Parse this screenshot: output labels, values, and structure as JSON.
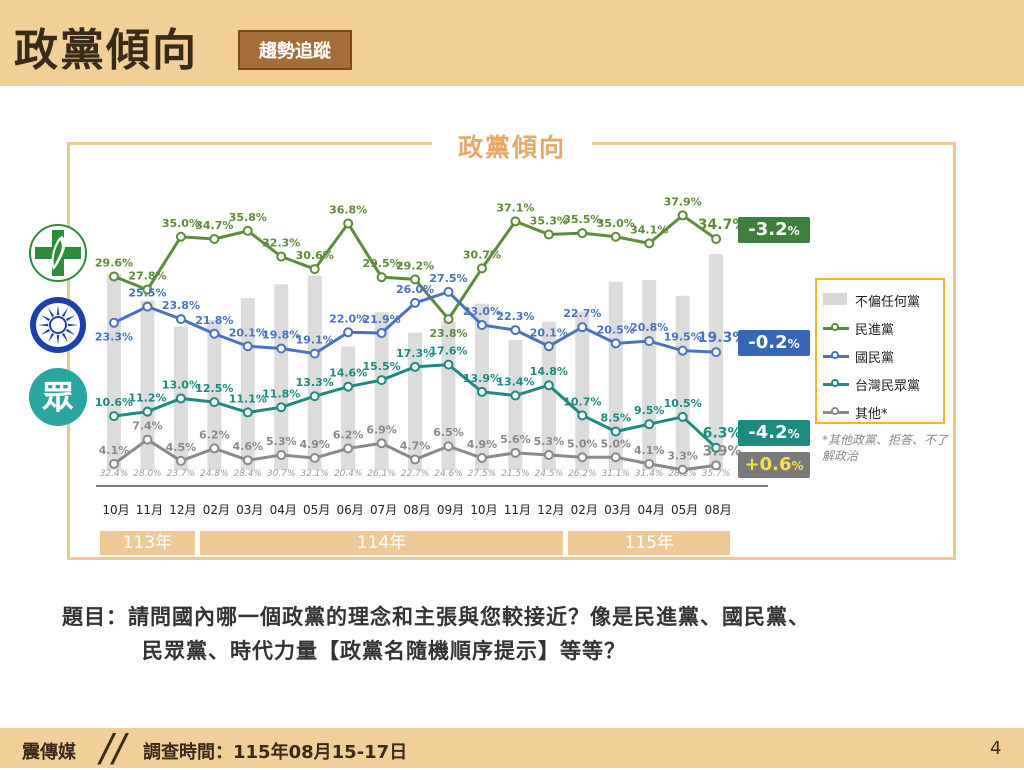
{
  "header": {
    "title": "政黨傾向",
    "tag": "趨勢追蹤"
  },
  "chart_data": {
    "type": "line",
    "title": "政黨傾向",
    "categories": [
      "10月",
      "11月",
      "12月",
      "02月",
      "03月",
      "04月",
      "05月",
      "06月",
      "07月",
      "08月",
      "09月",
      "10月",
      "11月",
      "12月",
      "02月",
      "03月",
      "04月",
      "05月",
      "08月"
    ],
    "year_groups": [
      {
        "label": "113年",
        "span": 3
      },
      {
        "label": "114年",
        "span": 11
      },
      {
        "label": "115年",
        "span": 5
      }
    ],
    "bars": {
      "name": "不偏任何黨",
      "values": [
        32.4,
        28.0,
        23.7,
        24.8,
        28.4,
        30.7,
        32.1,
        20.4,
        26.1,
        22.7,
        24.6,
        27.5,
        21.5,
        24.5,
        26.2,
        31.1,
        31.4,
        28.8,
        35.7
      ],
      "labels": [
        "32.4%",
        "28.0%",
        "23.7%",
        "24.8%",
        "28.4%",
        "30.7%",
        "32.1%",
        "20.4%",
        "26.1%",
        "22.7%",
        "24.6%",
        "27.5%",
        "21.5%",
        "24.5%",
        "26.2%",
        "31.1%",
        "31.4%",
        "28.8%",
        "35.7%"
      ]
    },
    "series": [
      {
        "name": "民進黨",
        "color": "#5d8c3a",
        "values": [
          29.6,
          27.8,
          35.0,
          34.7,
          35.8,
          32.3,
          30.6,
          36.8,
          29.5,
          29.2,
          23.8,
          30.7,
          37.1,
          35.3,
          35.5,
          35.0,
          34.1,
          37.9,
          34.7
        ],
        "labels": [
          "29.6%",
          "27.8%",
          "35.0%",
          "34.7%",
          "35.8%",
          "32.3%",
          "30.6%",
          "36.8%",
          "29.5%",
          "29.2%",
          "23.8%",
          "30.7%",
          "37.1%",
          "35.3%",
          "35.5%",
          "35.0%",
          "34.1%",
          "37.9%",
          "34.7%"
        ],
        "change": "-3.2",
        "change_color": "#3f7f3c"
      },
      {
        "name": "國民黨",
        "color": "#4a72c2",
        "values": [
          23.3,
          25.5,
          23.8,
          21.8,
          20.1,
          19.8,
          19.1,
          22.0,
          21.9,
          26.0,
          27.5,
          23.0,
          22.3,
          20.1,
          22.7,
          20.5,
          20.8,
          19.5,
          19.3
        ],
        "labels": [
          "23.3%",
          "25.5%",
          "23.8%",
          "21.8%",
          "20.1%",
          "19.8%",
          "19.1%",
          "22.0%",
          "21.9%",
          "26.0%",
          "27.5%",
          "23.0%",
          "22.3%",
          "20.1%",
          "22.7%",
          "20.5%",
          "20.8%",
          "19.5%",
          "19.3%"
        ],
        "change": "-0.2",
        "change_color": "#3566b8"
      },
      {
        "name": "台灣民眾黨",
        "color": "#1e8a80",
        "values": [
          10.6,
          11.2,
          13.0,
          12.5,
          11.1,
          11.8,
          13.3,
          14.6,
          15.5,
          17.3,
          17.6,
          13.9,
          13.4,
          14.8,
          10.7,
          8.5,
          9.5,
          10.5,
          6.3
        ],
        "labels": [
          "10.6%",
          "11.2%",
          "13.0%",
          "12.5%",
          "11.1%",
          "11.8%",
          "13.3%",
          "14.6%",
          "15.5%",
          "17.3%",
          "17.6%",
          "13.9%",
          "13.4%",
          "14.8%",
          "10.7%",
          "8.5%",
          "9.5%",
          "10.5%",
          "6.3%"
        ],
        "change": "-4.2",
        "change_color": "#1e8a80"
      },
      {
        "name": "其他*",
        "color": "#8a8a8a",
        "values": [
          4.1,
          7.4,
          4.5,
          6.2,
          4.6,
          5.3,
          4.9,
          6.2,
          6.9,
          4.7,
          6.5,
          4.9,
          5.6,
          5.3,
          5.0,
          5.0,
          4.1,
          3.3,
          3.9
        ],
        "labels": [
          "4.1%",
          "7.4%",
          "4.5%",
          "6.2%",
          "4.6%",
          "5.3%",
          "4.9%",
          "6.2%",
          "6.9%",
          "4.7%",
          "6.5%",
          "4.9%",
          "5.6%",
          "5.3%",
          "5.0%",
          "5.0%",
          "4.1%",
          "3.3%",
          "3.9%"
        ],
        "change": "+0.6",
        "change_color": "#7a7a7a",
        "change_text_color": "#f4e04a"
      }
    ],
    "legend_placement": "right",
    "grid": false
  },
  "pct_suffix": "%",
  "note": "*其他政黨、拒答、不了解政治",
  "question": {
    "line1": "題目：請問國內哪一個政黨的理念和主張與您較接近？像是民進黨、國民黨、",
    "line2": "民眾黨、時代力量【政黨名隨機順序提示】等等？"
  },
  "footer": {
    "brand": "震傳媒",
    "survey": "調查時間：115年08月15-17日",
    "page": "4"
  },
  "logos": {
    "dpp": {
      "icon": "dpp-flag-icon",
      "color": "#2e8b3a"
    },
    "kmt": {
      "icon": "kmt-sun-icon",
      "color": "#1f3fae"
    },
    "tpp": {
      "icon": "tpp-logo-icon",
      "text": "眾",
      "color": "#2aa6a0"
    }
  }
}
